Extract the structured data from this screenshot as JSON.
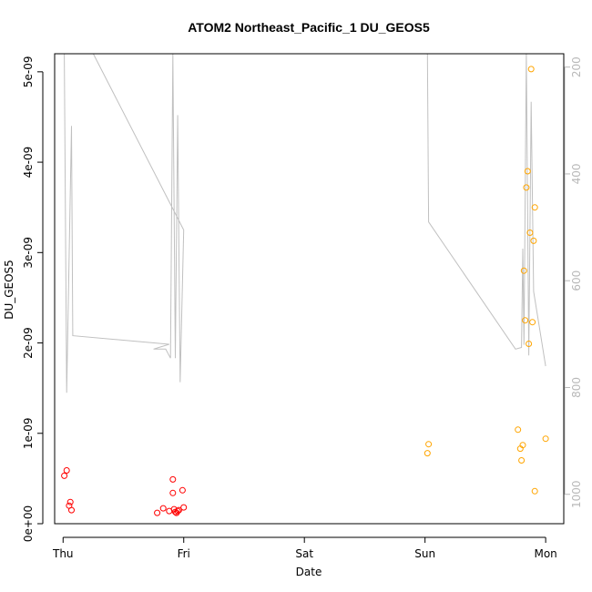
{
  "chart_data": {
    "type": "scatter",
    "title": "ATOM2 Northeast_Pacific_1 DU_GEOS5",
    "xlabel": "Date",
    "ylabel": "DU_GEOS5",
    "x_ticks": [
      "Thu",
      "Fri",
      "Sat",
      "Sun",
      "Mon"
    ],
    "xlim_days": [
      -0.07,
      4.15
    ],
    "ylim": [
      0,
      5.2e-09
    ],
    "y_ticks": [
      0,
      1e-09,
      2e-09,
      3e-09,
      4e-09,
      5e-09
    ],
    "y_tick_labels": [
      "0e+00",
      "1e-09",
      "2e-09",
      "3e-09",
      "4e-09",
      "5e-09"
    ],
    "y2_ticks": [
      200,
      400,
      600,
      800,
      1000
    ],
    "y2lim_reversed": [
      175,
      1055
    ],
    "grid": false,
    "colors": {
      "red_points": "#ff0000",
      "orange_points": "#ffa500",
      "pressure_line": "#c0c0c0",
      "right_axis": "#b8b8b8"
    },
    "series": [
      {
        "color": "red",
        "points": [
          [
            0.01,
            5.3e-10
          ],
          [
            0.03,
            5.9e-10
          ],
          [
            0.05,
            2e-10
          ],
          [
            0.06,
            2.4e-10
          ],
          [
            0.07,
            1.5e-10
          ],
          [
            0.78,
            1.2e-10
          ],
          [
            0.83,
            1.7e-10
          ],
          [
            0.88,
            1.4e-10
          ],
          [
            0.91,
            4.9e-10
          ],
          [
            0.91,
            3.4e-10
          ],
          [
            0.92,
            1.6e-10
          ],
          [
            0.93,
            1.3e-10
          ],
          [
            0.94,
            1.2e-10
          ],
          [
            0.95,
            1.4e-10
          ],
          [
            0.96,
            1.5e-10
          ],
          [
            0.99,
            3.7e-10
          ],
          [
            1.0,
            1.8e-10
          ]
        ]
      },
      {
        "color": "orange",
        "points": [
          [
            3.02,
            7.8e-10
          ],
          [
            3.03,
            8.8e-10
          ],
          [
            3.77,
            1.04e-09
          ],
          [
            3.79,
            8.3e-10
          ],
          [
            3.8,
            7e-10
          ],
          [
            3.81,
            8.7e-10
          ],
          [
            3.82,
            2.8e-09
          ],
          [
            3.83,
            2.25e-09
          ],
          [
            3.84,
            3.72e-09
          ],
          [
            3.85,
            3.9e-09
          ],
          [
            3.86,
            1.99e-09
          ],
          [
            3.87,
            3.22e-09
          ],
          [
            3.88,
            5.03e-09
          ],
          [
            3.89,
            2.23e-09
          ],
          [
            3.9,
            3.13e-09
          ],
          [
            3.91,
            3.5e-09
          ],
          [
            3.91,
            3.6e-10
          ],
          [
            4.0,
            9.4e-10
          ]
        ]
      }
    ],
    "pressure_line": {
      "axis": "right",
      "points": [
        [
          0.01,
          175
        ],
        [
          0.03,
          810
        ],
        [
          0.07,
          310
        ],
        [
          0.08,
          703
        ],
        [
          0.88,
          719
        ],
        [
          0.75,
          728
        ],
        [
          0.85,
          728
        ],
        [
          0.89,
          745
        ],
        [
          0.91,
          175
        ],
        [
          0.93,
          745
        ],
        [
          0.95,
          290
        ],
        [
          0.97,
          790
        ],
        [
          1.0,
          505
        ],
        [
          0.25,
          175
        ],
        [
          3.02,
          175
        ],
        [
          3.03,
          490
        ],
        [
          3.75,
          728
        ],
        [
          3.8,
          725
        ],
        [
          3.81,
          540
        ],
        [
          3.82,
          720
        ],
        [
          3.84,
          175
        ],
        [
          3.86,
          740
        ],
        [
          3.88,
          265
        ],
        [
          3.9,
          620
        ],
        [
          4.0,
          760
        ]
      ]
    }
  }
}
